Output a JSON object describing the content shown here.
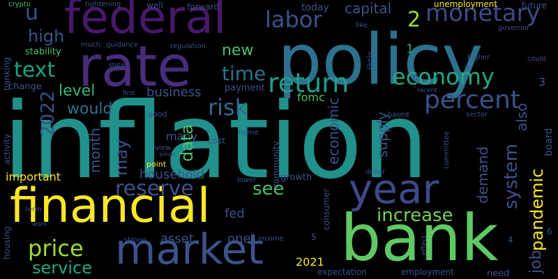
{
  "background": "#000000",
  "palette": {
    "purple": "#46327e",
    "indigo": "#3b528b",
    "blue": "#365c8d",
    "teal": "#277f8e",
    "cyan": "#1fa187",
    "green": "#4ac16d",
    "lime": "#a0da39",
    "yellow": "#fde725"
  },
  "words": [
    {
      "text": "inflation",
      "size": 150,
      "color": "#21918c",
      "dir": "h"
    },
    {
      "text": "policy",
      "size": 100,
      "color": "#2c728e",
      "dir": "h"
    },
    {
      "text": "financial",
      "size": 68,
      "color": "#fde725",
      "dir": "h"
    },
    {
      "text": "bank",
      "size": 92,
      "color": "#5ec962",
      "dir": "h"
    },
    {
      "text": "rate",
      "size": 80,
      "color": "#472d7b",
      "dir": "h"
    },
    {
      "text": "federal",
      "size": 66,
      "color": "#48186a",
      "dir": "h"
    },
    {
      "text": "market",
      "size": 60,
      "color": "#3b528b",
      "dir": "h"
    },
    {
      "text": "year",
      "size": 58,
      "color": "#3e4989",
      "dir": "h"
    },
    {
      "text": "return",
      "size": 38,
      "color": "#1f9e89",
      "dir": "h"
    },
    {
      "text": "percent",
      "size": 36,
      "color": "#3b528b",
      "dir": "h"
    },
    {
      "text": "monetary",
      "size": 34,
      "color": "#3e4a89",
      "dir": "h"
    },
    {
      "text": "economy",
      "size": 32,
      "color": "#22a884",
      "dir": "h"
    },
    {
      "text": "labor",
      "size": 32,
      "color": "#3b528b",
      "dir": "h"
    },
    {
      "text": "price",
      "size": 32,
      "color": "#a0da39",
      "dir": "h"
    },
    {
      "text": "reserve",
      "size": 30,
      "color": "#3b528b",
      "dir": "h"
    },
    {
      "text": "risk",
      "size": 32,
      "color": "#31688e",
      "dir": "h"
    },
    {
      "text": "text",
      "size": 30,
      "color": "#1fa187",
      "dir": "h"
    },
    {
      "text": "time",
      "size": 28,
      "color": "#2c728e",
      "dir": "h"
    },
    {
      "text": "increase",
      "size": 26,
      "color": "#73d056",
      "dir": "h"
    },
    {
      "text": "service",
      "size": 24,
      "color": "#22a884",
      "dir": "h"
    },
    {
      "text": "high",
      "size": 24,
      "color": "#3b528b",
      "dir": "h"
    },
    {
      "text": "see",
      "size": 26,
      "color": "#4ac16d",
      "dir": "h"
    },
    {
      "text": "new",
      "size": 22,
      "color": "#4ac16d",
      "dir": "h"
    },
    {
      "text": "level",
      "size": 22,
      "color": "#35b779",
      "dir": "h"
    },
    {
      "text": "would",
      "size": 22,
      "color": "#2c728e",
      "dir": "h"
    },
    {
      "text": "capital",
      "size": 20,
      "color": "#3b528b",
      "dir": "h"
    },
    {
      "text": "business",
      "size": 18,
      "color": "#3b528b",
      "dir": "h"
    },
    {
      "text": "household",
      "size": 18,
      "color": "#3b528b",
      "dir": "h"
    },
    {
      "text": "asset",
      "size": 18,
      "color": "#3b528b",
      "dir": "h"
    },
    {
      "text": "fed",
      "size": 18,
      "color": "#3b528b",
      "dir": "h"
    },
    {
      "text": "one",
      "size": 18,
      "color": "#3b528b",
      "dir": "h"
    },
    {
      "text": "many",
      "size": 16,
      "color": "#3b528b",
      "dir": "h"
    },
    {
      "text": "important",
      "size": 16,
      "color": "#fde725",
      "dir": "h"
    },
    {
      "text": "u",
      "size": 30,
      "color": "#3b528b",
      "dir": "h"
    },
    {
      "text": "2",
      "size": 30,
      "color": "#a0da39",
      "dir": "h"
    },
    {
      "text": "1",
      "size": 18,
      "color": "#1fa187",
      "dir": "h"
    },
    {
      "text": "3",
      "size": 16,
      "color": "#3b528b",
      "dir": "h"
    },
    {
      "text": "2021",
      "size": 16,
      "color": "#fde725",
      "dir": "h"
    },
    {
      "text": "fomc",
      "size": 16,
      "color": "#4ac16d",
      "dir": "h"
    },
    {
      "text": "today",
      "size": 14,
      "color": "#3b528b",
      "dir": "h"
    },
    {
      "text": "stability",
      "size": 13,
      "color": "#4ac16d",
      "dir": "h"
    },
    {
      "text": "change",
      "size": 13,
      "color": "#3b528b",
      "dir": "h"
    },
    {
      "text": "payment",
      "size": 13,
      "color": "#3b528b",
      "dir": "h"
    },
    {
      "text": "growth",
      "size": 13,
      "color": "#3b528b",
      "dir": "h"
    },
    {
      "text": "cost",
      "size": 12,
      "color": "#3b528b",
      "dir": "h"
    },
    {
      "text": "expectation",
      "size": 12,
      "color": "#3b528b",
      "dir": "h"
    },
    {
      "text": "employment",
      "size": 12,
      "color": "#3b528b",
      "dir": "h"
    },
    {
      "text": "unemployment",
      "size": 12,
      "color": "#fde725",
      "dir": "h"
    },
    {
      "text": "future",
      "size": 12,
      "color": "#3b528b",
      "dir": "h"
    },
    {
      "text": "need",
      "size": 13,
      "color": "#3b528b",
      "dir": "h"
    },
    {
      "text": "governor",
      "size": 10,
      "color": "#3b528b",
      "dir": "h"
    },
    {
      "text": "crypto",
      "size": 10,
      "color": "#4ac16d",
      "dir": "h"
    },
    {
      "text": "tightening",
      "size": 10,
      "color": "#3b528b",
      "dir": "h"
    },
    {
      "text": "well",
      "size": 12,
      "color": "#3b528b",
      "dir": "h"
    },
    {
      "text": "forward",
      "size": 12,
      "color": "#3b528b",
      "dir": "h"
    },
    {
      "text": "much",
      "size": 10,
      "color": "#3b528b",
      "dir": "h"
    },
    {
      "text": "guidance",
      "size": 10,
      "color": "#3b528b",
      "dir": "h"
    },
    {
      "text": "regulation",
      "size": 10,
      "color": "#3b528b",
      "dir": "h"
    },
    {
      "text": "like",
      "size": 10,
      "color": "#3b528b",
      "dir": "h"
    },
    {
      "text": "state",
      "size": 9,
      "color": "#3b528b",
      "dir": "h"
    },
    {
      "text": "higher",
      "size": 10,
      "color": "#3b528b",
      "dir": "h"
    },
    {
      "text": "could",
      "size": 10,
      "color": "#3b528b",
      "dir": "h"
    },
    {
      "text": "first",
      "size": 9,
      "color": "#3b528b",
      "dir": "h"
    },
    {
      "text": "recent",
      "size": 9,
      "color": "#3b528b",
      "dir": "h"
    },
    {
      "text": "good",
      "size": 11,
      "color": "#3b528b",
      "dir": "h"
    },
    {
      "text": "based",
      "size": 10,
      "color": "#3b528b",
      "dir": "h"
    },
    {
      "text": "sector",
      "size": 10,
      "color": "#3b528b",
      "dir": "h"
    },
    {
      "text": "home",
      "size": 10,
      "color": "#3b528b",
      "dir": "h"
    },
    {
      "text": "view",
      "size": 10,
      "color": "#3b528b",
      "dir": "h"
    },
    {
      "text": "point",
      "size": 11,
      "color": "#fde725",
      "dir": "h"
    },
    {
      "text": "since",
      "size": 9,
      "color": "#3b528b",
      "dir": "h"
    },
    {
      "text": "dollar",
      "size": 10,
      "color": "#3b528b",
      "dir": "h"
    },
    {
      "text": "lower",
      "size": 10,
      "color": "#3b528b",
      "dir": "h"
    },
    {
      "text": "term",
      "size": 10,
      "color": "#3b528b",
      "dir": "h"
    },
    {
      "text": "work",
      "size": 9,
      "color": "#3b528b",
      "dir": "h"
    },
    {
      "text": "strong",
      "size": 10,
      "color": "#3b528b",
      "dir": "h"
    },
    {
      "text": "income",
      "size": 10,
      "color": "#3b528b",
      "dir": "h"
    },
    {
      "text": "4",
      "size": 12,
      "color": "#3b528b",
      "dir": "h"
    },
    {
      "text": "5",
      "size": 12,
      "color": "#3b528b",
      "dir": "h"
    },
    {
      "text": "6",
      "size": 12,
      "color": "#3b528b",
      "dir": "h"
    },
    {
      "text": "2022",
      "size": 26,
      "color": "#3b528b",
      "dir": "v"
    },
    {
      "text": "month",
      "size": 20,
      "color": "#3b528b",
      "dir": "v"
    },
    {
      "text": "may",
      "size": 24,
      "color": "#3b528b",
      "dir": "v"
    },
    {
      "text": "data",
      "size": 24,
      "color": "#4ac16d",
      "dir": "v"
    },
    {
      "text": "economic",
      "size": 20,
      "color": "#3b528b",
      "dir": "v"
    },
    {
      "text": "supply",
      "size": 20,
      "color": "#3b528b",
      "dir": "v"
    },
    {
      "text": "system",
      "size": 26,
      "color": "#3b528b",
      "dir": "v"
    },
    {
      "text": "demand",
      "size": 20,
      "color": "#3b528b",
      "dir": "v"
    },
    {
      "text": "pandemic",
      "size": 24,
      "color": "#fde725",
      "dir": "v"
    },
    {
      "text": "also",
      "size": 20,
      "color": "#3b528b",
      "dir": "v"
    },
    {
      "text": "job",
      "size": 22,
      "color": "#3b528b",
      "dir": "v"
    },
    {
      "text": "board",
      "size": 14,
      "color": "#3b528b",
      "dir": "v"
    },
    {
      "text": "banking",
      "size": 12,
      "color": "#3b528b",
      "dir": "v"
    },
    {
      "text": "activity",
      "size": 12,
      "color": "#3b528b",
      "dir": "v"
    },
    {
      "text": "housing",
      "size": 12,
      "color": "#3b528b",
      "dir": "v"
    },
    {
      "text": "community",
      "size": 12,
      "color": "#3b528b",
      "dir": "v"
    },
    {
      "text": "consumer",
      "size": 12,
      "color": "#3b528b",
      "dir": "v"
    },
    {
      "text": "committee",
      "size": 10,
      "color": "#3b528b",
      "dir": "v"
    },
    {
      "text": "likely",
      "size": 10,
      "color": "#3b528b",
      "dir": "v"
    },
    {
      "text": "effect",
      "size": 10,
      "color": "#3b528b",
      "dir": "v"
    }
  ]
}
